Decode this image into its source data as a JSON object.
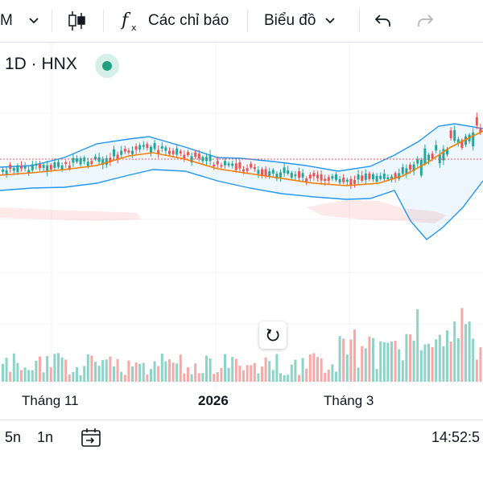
{
  "toolbar": {
    "interval_label": "M",
    "indicators_label": "Các chỉ báo",
    "layout_label": "Biểu đồ"
  },
  "legend": {
    "symbol": "1D · HNX"
  },
  "colors": {
    "up": "#26a69a",
    "down": "#ef5350",
    "ma": "#f57c00",
    "band": "#2196f3",
    "price_line": "#ef5350"
  },
  "icons": [
    "chevron-down-icon",
    "candles-icon",
    "fx-icon",
    "undo-icon",
    "redo-icon",
    "reset-icon",
    "calendar-range-icon"
  ],
  "time_axis": {
    "labels": [
      {
        "text": "Tháng 11",
        "bold": false
      },
      {
        "text": "2026",
        "bold": true
      },
      {
        "text": "Tháng 3",
        "bold": false
      }
    ]
  },
  "bottom_bar": {
    "ranges": [
      "5n",
      "1n"
    ],
    "clock": "14:52:5"
  }
}
